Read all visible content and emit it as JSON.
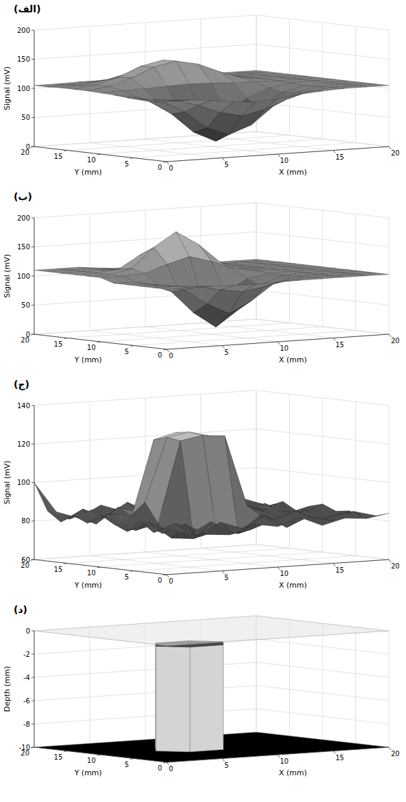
{
  "chart_data": [
    {
      "type": "surface",
      "title": "(الف)",
      "xlabel": "X (mm)",
      "ylabel": "Y (mm)",
      "zlabel": "Signal (mV)",
      "xlim": [
        0,
        20
      ],
      "ylim": [
        0,
        20
      ],
      "zlim": [
        0,
        200
      ],
      "xticks": [
        0,
        5,
        10,
        15,
        20
      ],
      "yticks": [
        0,
        5,
        10,
        15,
        20
      ],
      "zticks": [
        0,
        50,
        100,
        150,
        200
      ],
      "grid": true,
      "x": [
        0,
        2,
        4,
        6,
        8,
        10,
        12,
        14,
        16,
        18,
        20
      ],
      "y": [
        0,
        2,
        4,
        6,
        8,
        10,
        12,
        14,
        16,
        18,
        20
      ],
      "z": [
        [
          105,
          103,
          100,
          95,
          92,
          95,
          100,
          103,
          105,
          105,
          105
        ],
        [
          104,
          100,
          89,
          74,
          66,
          74,
          89,
          100,
          104,
          105,
          105
        ],
        [
          103,
          95,
          75,
          45,
          31,
          45,
          75,
          95,
          103,
          105,
          105
        ],
        [
          102,
          93,
          69,
          35,
          17,
          35,
          69,
          93,
          102,
          105,
          105
        ],
        [
          104,
          98,
          83,
          62,
          52,
          62,
          83,
          98,
          104,
          105,
          105
        ],
        [
          105,
          106,
          107,
          109,
          110,
          109,
          107,
          106,
          105,
          105,
          105
        ],
        [
          106,
          111,
          123,
          139,
          147,
          139,
          123,
          110,
          106,
          105,
          105
        ],
        [
          106,
          111,
          122,
          138,
          146,
          138,
          122,
          111,
          106,
          105,
          105
        ],
        [
          106,
          108,
          114,
          123,
          128,
          123,
          114,
          108,
          106,
          105,
          105
        ],
        [
          105,
          106,
          108,
          111,
          112,
          111,
          108,
          106,
          105,
          105,
          105
        ],
        [
          105,
          105,
          106,
          106,
          107,
          106,
          106,
          105,
          105,
          105,
          105
        ]
      ]
    },
    {
      "type": "surface",
      "title": "(ب)",
      "xlabel": "X (mm)",
      "ylabel": "Y (mm)",
      "zlabel": "Signal (mV)",
      "xlim": [
        0,
        20
      ],
      "ylim": [
        0,
        20
      ],
      "zlim": [
        0,
        200
      ],
      "xticks": [
        0,
        5,
        10,
        15,
        20
      ],
      "yticks": [
        0,
        5,
        10,
        15,
        20
      ],
      "zticks": [
        0,
        50,
        100,
        150,
        200
      ],
      "grid": true,
      "x": [
        0,
        2,
        4,
        6,
        8,
        10,
        12,
        14,
        16,
        18,
        20
      ],
      "y": [
        0,
        2,
        4,
        6,
        8,
        10,
        12,
        14,
        16,
        18,
        20
      ],
      "z": [
        [
          103,
          103,
          103,
          102,
          101,
          102,
          103,
          103,
          103,
          103,
          103
        ],
        [
          103,
          103,
          100,
          92,
          86,
          92,
          100,
          103,
          103,
          103,
          103
        ],
        [
          103,
          102,
          92,
          65,
          46,
          65,
          92,
          102,
          103,
          103,
          103
        ],
        [
          103,
          101,
          86,
          47,
          20,
          47,
          86,
          101,
          103,
          103,
          103
        ],
        [
          103,
          102,
          95,
          75,
          61,
          75,
          95,
          102,
          103,
          103,
          103
        ],
        [
          110,
          110,
          112,
          125,
          136,
          125,
          110,
          104,
          103,
          103,
          103
        ],
        [
          110,
          110,
          118,
          152,
          176,
          152,
          118,
          105,
          103,
          103,
          103
        ],
        [
          110,
          110,
          114,
          137,
          153,
          137,
          113,
          104,
          103,
          103,
          103
        ],
        [
          110,
          110,
          110,
          113,
          118,
          113,
          106,
          103,
          103,
          103,
          103
        ],
        [
          110,
          110,
          110,
          106,
          105,
          104,
          103,
          103,
          103,
          103,
          103
        ],
        [
          110,
          110,
          110,
          106,
          103,
          103,
          103,
          103,
          103,
          103,
          103
        ]
      ]
    },
    {
      "type": "surface",
      "title": "(ج)",
      "xlabel": "X (mm)",
      "ylabel": "Y (mm)",
      "zlabel": "Signal (mV)",
      "xlim": [
        0,
        20
      ],
      "ylim": [
        0,
        20
      ],
      "zlim": [
        60,
        140
      ],
      "xticks": [
        0,
        5,
        10,
        15,
        20
      ],
      "yticks": [
        0,
        5,
        10,
        15,
        20
      ],
      "zticks": [
        60,
        80,
        100,
        120,
        140
      ],
      "grid": true,
      "x": [
        0,
        2,
        4,
        6,
        8,
        10,
        12,
        14,
        16,
        18,
        20
      ],
      "y": [
        0,
        2,
        4,
        6,
        8,
        10,
        12,
        14,
        16,
        18,
        20
      ],
      "z": [
        [
          84,
          80,
          86,
          79,
          83,
          81,
          85,
          80,
          83,
          82,
          84
        ],
        [
          81,
          85,
          78,
          84,
          80,
          86,
          79,
          84,
          81,
          85,
          82
        ],
        [
          86,
          79,
          83,
          77,
          76,
          78,
          82,
          86,
          80,
          83,
          81
        ],
        [
          80,
          84,
          75,
          74,
          78,
          75,
          84,
          79,
          85,
          80,
          83
        ],
        [
          83,
          79,
          82,
          124,
          126,
          125,
          88,
          83,
          80,
          84,
          82
        ],
        [
          87,
          82,
          92,
          125,
          127,
          124,
          90,
          85,
          83,
          81,
          85
        ],
        [
          82,
          86,
          84,
          123,
          126,
          124,
          87,
          82,
          86,
          80,
          83
        ],
        [
          85,
          80,
          88,
          84,
          90,
          86,
          83,
          87,
          81,
          84,
          80
        ],
        [
          81,
          87,
          82,
          89,
          83,
          85,
          80,
          84,
          82,
          79,
          84
        ],
        [
          86,
          81,
          85,
          80,
          86,
          82,
          87,
          81,
          85,
          83,
          81
        ],
        [
          100,
          84,
          80,
          86,
          82,
          85,
          81,
          84,
          80,
          86,
          82
        ]
      ]
    },
    {
      "type": "prism",
      "title": "(د)",
      "xlabel": "X (mm)",
      "ylabel": "Y (mm)",
      "zlabel": "Depth (mm)",
      "xlim": [
        0,
        20
      ],
      "ylim": [
        0,
        20
      ],
      "zlim": [
        -10,
        0
      ],
      "xticks": [
        0,
        5,
        10,
        15,
        20
      ],
      "yticks": [
        0,
        5,
        10,
        15,
        20
      ],
      "zticks": [
        -10,
        -8,
        -6,
        -4,
        -2,
        0
      ],
      "grid": true,
      "planes": [
        0,
        -10
      ],
      "hexagon": [
        [
          11,
          10
        ],
        [
          9.5,
          12.6
        ],
        [
          6.5,
          12.6
        ],
        [
          5,
          10
        ],
        [
          6.5,
          7.4
        ],
        [
          9.5,
          7.4
        ]
      ],
      "top": -1,
      "bottom": -10
    }
  ]
}
